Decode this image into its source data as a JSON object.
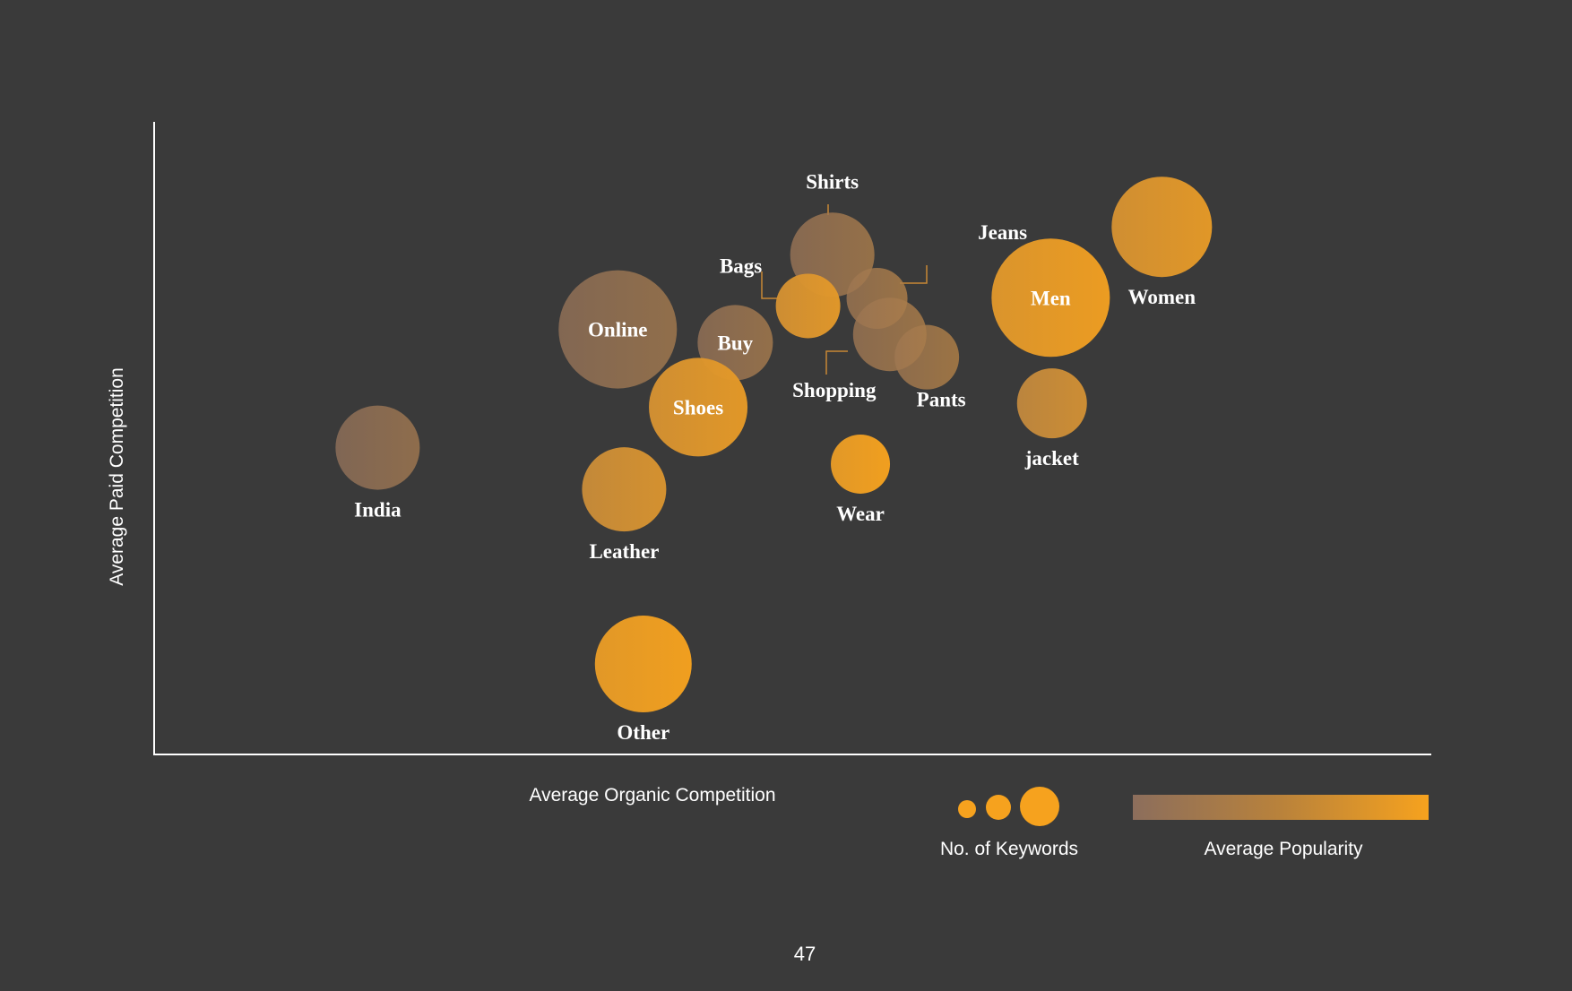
{
  "chart_data": {
    "type": "bubble",
    "title": "",
    "xlabel": "Average Organic Competition",
    "ylabel": "Average Paid Competition",
    "xlim": [
      0,
      100
    ],
    "ylim": [
      0,
      100
    ],
    "grid": false,
    "points": [
      {
        "label": "India",
        "x": 17.5,
        "y": 48.5,
        "size": 47,
        "popularity": 0.15
      },
      {
        "label": "Online",
        "x": 36.3,
        "y": 67.2,
        "size": 66,
        "popularity": 0.18
      },
      {
        "label": "Buy",
        "x": 45.5,
        "y": 65.1,
        "size": 42,
        "popularity": 0.2
      },
      {
        "label": "Shoes",
        "x": 42.6,
        "y": 54.9,
        "size": 55,
        "popularity": 0.8
      },
      {
        "label": "Leather",
        "x": 36.8,
        "y": 41.9,
        "size": 47,
        "popularity": 0.68
      },
      {
        "label": "Other",
        "x": 38.3,
        "y": 14.3,
        "size": 54,
        "popularity": 0.98
      },
      {
        "label": "Shirts",
        "x": 53.1,
        "y": 79.0,
        "size": 47,
        "popularity": 0.22
      },
      {
        "label": "Bags",
        "x": 51.2,
        "y": 70.9,
        "size": 36,
        "popularity": 0.78
      },
      {
        "label": "Jeans",
        "x": 56.6,
        "y": 72.1,
        "size": 34,
        "popularity": 0.28
      },
      {
        "label": "Shopping",
        "x": 57.6,
        "y": 66.4,
        "size": 41,
        "popularity": 0.26
      },
      {
        "label": "Pants",
        "x": 60.5,
        "y": 62.8,
        "size": 36,
        "popularity": 0.3
      },
      {
        "label": "Men",
        "x": 70.2,
        "y": 72.2,
        "size": 66,
        "popularity": 0.9
      },
      {
        "label": "Women",
        "x": 78.9,
        "y": 83.4,
        "size": 56,
        "popularity": 0.8
      },
      {
        "label": "jacket",
        "x": 70.3,
        "y": 55.5,
        "size": 39,
        "popularity": 0.6
      },
      {
        "label": "Wear",
        "x": 55.3,
        "y": 45.9,
        "size": 33,
        "popularity": 0.98
      }
    ],
    "legend": {
      "size_title": "No. of Keywords",
      "color_title": "Average Popularity",
      "placement": "bottom-right"
    }
  },
  "colors": {
    "background": "#3a3a3a",
    "low_popularity": "#8c6e5c",
    "high_popularity": "#f6a21e",
    "axis": "#ffffff",
    "leader": "#c88834"
  },
  "page_number": "47"
}
